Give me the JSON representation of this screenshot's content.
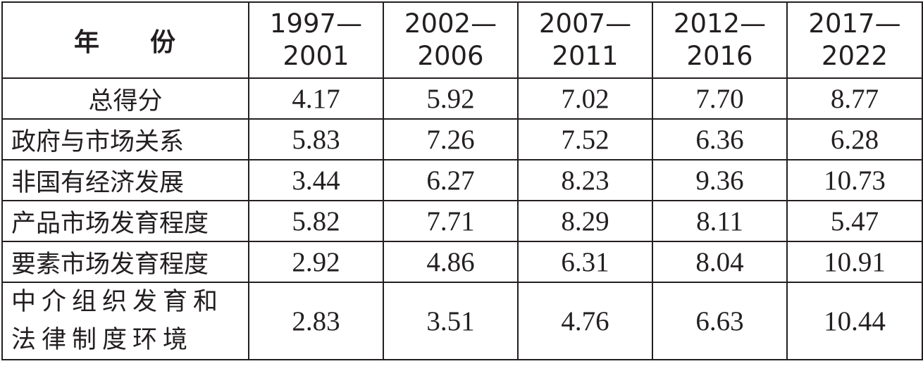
{
  "table": {
    "header": {
      "label_left": "年",
      "label_right": "份",
      "years": [
        [
          "1997—",
          "2001"
        ],
        [
          "2002—",
          "2006"
        ],
        [
          "2007—",
          "2011"
        ],
        [
          "2012—",
          "2016"
        ],
        [
          "2017—",
          "2022"
        ]
      ]
    },
    "rows": [
      {
        "label": "总得分",
        "values": [
          "4.17",
          "5.92",
          "7.02",
          "7.70",
          "8.77"
        ]
      },
      {
        "label": "政府与市场关系",
        "values": [
          "5.83",
          "7.26",
          "7.52",
          "6.36",
          "6.28"
        ]
      },
      {
        "label": "非国有经济发展",
        "values": [
          "3.44",
          "6.27",
          "8.23",
          "9.36",
          "10.73"
        ]
      },
      {
        "label": "产品市场发育程度",
        "values": [
          "5.82",
          "7.71",
          "8.29",
          "8.11",
          "5.47"
        ]
      },
      {
        "label": "要素市场发育程度",
        "values": [
          "2.92",
          "4.86",
          "6.31",
          "8.04",
          "10.91"
        ]
      },
      {
        "label": "中介组织发育和法律制度环境",
        "values": [
          "2.83",
          "3.51",
          "4.76",
          "6.63",
          "10.44"
        ]
      }
    ]
  }
}
